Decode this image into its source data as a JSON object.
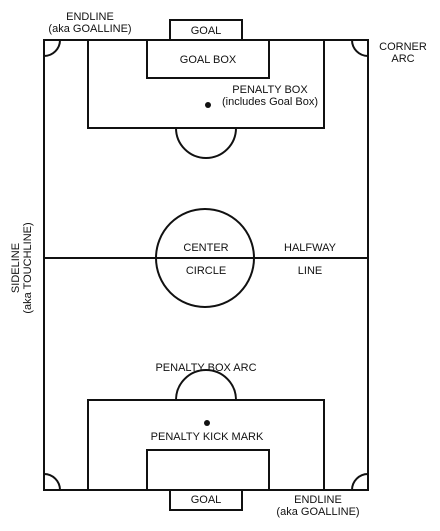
{
  "labels": {
    "endline_top": "ENDLINE",
    "endline_top_aka": "(aka GOALLINE)",
    "goal_top": "GOAL",
    "goal_box": "GOAL BOX",
    "corner": "CORNER",
    "corner_arc": "ARC",
    "penalty_box": "PENALTY BOX",
    "penalty_box_note": "(includes Goal Box)",
    "sideline": "SIDELINE",
    "sideline_aka": "(aka TOUCHLINE)",
    "center": "CENTER",
    "circle": "CIRCLE",
    "halfway": "HALFWAY",
    "halfway_line": "LINE",
    "penalty_box_arc": "PENALTY BOX ARC",
    "penalty_kick_mark": "PENALTY KICK MARK",
    "goal_bottom": "GOAL",
    "endline_bottom": "ENDLINE",
    "endline_bottom_aka": "(aka GOALLINE)"
  }
}
